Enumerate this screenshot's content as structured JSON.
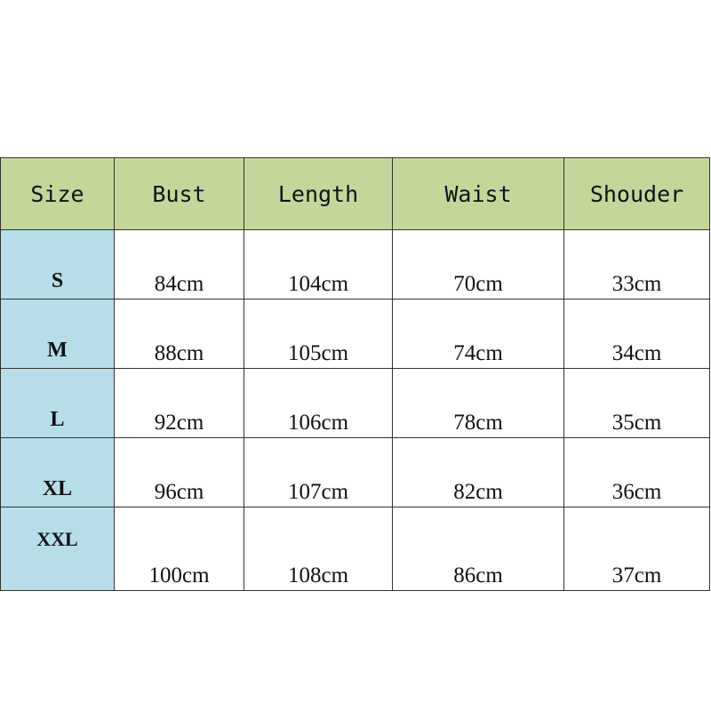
{
  "colors": {
    "header_bg": "#c4d79b",
    "size_column_bg": "#b7dde8"
  },
  "headers": [
    "Size",
    "Bust",
    "Length",
    "Waist",
    "Shouder"
  ],
  "rows": [
    [
      "S",
      "84cm",
      "104cm",
      "70cm",
      "33cm"
    ],
    [
      "M",
      "88cm",
      "105cm",
      "74cm",
      "34cm"
    ],
    [
      "L",
      "92cm",
      "106cm",
      "78cm",
      "35cm"
    ],
    [
      "XL",
      "96cm",
      "107cm",
      "82cm",
      "36cm"
    ],
    [
      "XXL",
      "100cm",
      "108cm",
      "86cm",
      "37cm"
    ]
  ]
}
